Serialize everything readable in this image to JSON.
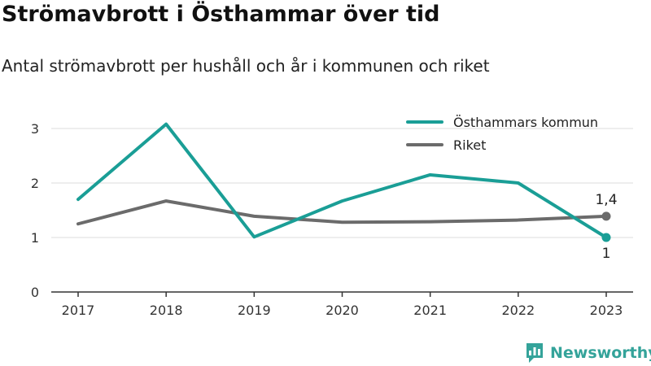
{
  "header": {
    "title": "Strömavbrott i Östhammar över tid",
    "subtitle": "Antal strömavbrott per hushåll och år i kommunen och riket"
  },
  "colors": {
    "osthammar": "#1a9e96",
    "riket": "#6b6b6b",
    "grid": "#dddddd",
    "axis": "#333333",
    "brand": "#34a39a"
  },
  "chart_data": {
    "type": "line",
    "title": "Strömavbrott i Östhammar över tid",
    "subtitle": "Antal strömavbrott per hushåll och år i kommunen och riket",
    "x": [
      "2017",
      "2018",
      "2019",
      "2020",
      "2021",
      "2022",
      "2023"
    ],
    "ylim": [
      0,
      3.3
    ],
    "yticks": [
      "0",
      "1",
      "2",
      "3"
    ],
    "grid": true,
    "legend_position": "top-right",
    "series": [
      {
        "name": "Östhammars kommun",
        "color": "#1a9e96",
        "values": [
          1.7,
          3.08,
          1.01,
          1.67,
          2.15,
          2.0,
          1.0
        ],
        "end_label": "1"
      },
      {
        "name": "Riket",
        "color": "#6b6b6b",
        "values": [
          1.25,
          1.67,
          1.39,
          1.28,
          1.29,
          1.32,
          1.39
        ],
        "end_label": "1,4"
      }
    ]
  },
  "logo": {
    "text": "Newsworthy"
  }
}
